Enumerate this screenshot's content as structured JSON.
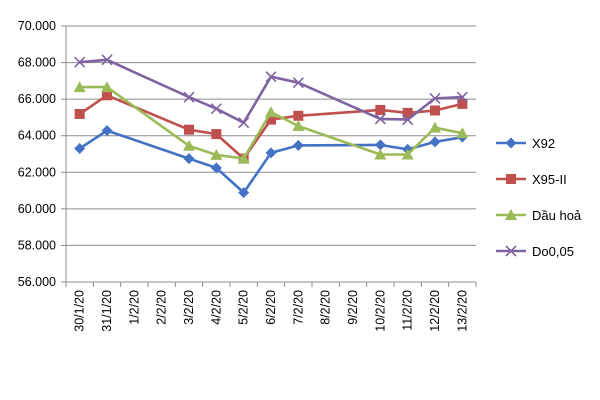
{
  "chart_data": {
    "type": "line",
    "title": "",
    "xlabel": "",
    "ylabel": "",
    "categories": [
      "30/1/20",
      "31/1/20",
      "1/2/20",
      "2/2/20",
      "3/2/20",
      "4/2/20",
      "5/2/20",
      "6/2/20",
      "7/2/20",
      "8/2/20",
      "9/2/20",
      "10/2/20",
      "11/2/20",
      "12/2/20",
      "13/2/20"
    ],
    "ylim": [
      56000,
      70000
    ],
    "yticks": [
      56000,
      58000,
      60000,
      62000,
      64000,
      66000,
      68000,
      70000
    ],
    "ytick_labels": [
      "56.000",
      "58.000",
      "60.000",
      "62.000",
      "64.000",
      "66.000",
      "68.000",
      "70.000"
    ],
    "grid": true,
    "legend_position": "right",
    "series": [
      {
        "name": "X92",
        "color": "#4472C4",
        "marker": "diamond",
        "values": [
          63300,
          64280,
          null,
          null,
          62750,
          62240,
          60890,
          63060,
          63470,
          null,
          null,
          63500,
          63250,
          63660,
          63920
        ]
      },
      {
        "name": "X95-II",
        "color": "#C0504D",
        "marker": "square",
        "values": [
          65190,
          66210,
          null,
          null,
          64330,
          64090,
          62750,
          64880,
          65090,
          null,
          null,
          65410,
          65250,
          65380,
          65740
        ]
      },
      {
        "name": "Dầu hoả",
        "color": "#9BBB59",
        "marker": "triangle",
        "values": [
          66660,
          66660,
          null,
          null,
          63450,
          62950,
          62750,
          65290,
          64530,
          null,
          null,
          62970,
          62970,
          64440,
          64140
        ]
      },
      {
        "name": "Do0,05",
        "color": "#8064A2",
        "marker": "x",
        "values": [
          68020,
          68150,
          null,
          null,
          66110,
          65480,
          64710,
          67230,
          66900,
          null,
          null,
          64920,
          64880,
          66040,
          66110
        ]
      }
    ]
  }
}
